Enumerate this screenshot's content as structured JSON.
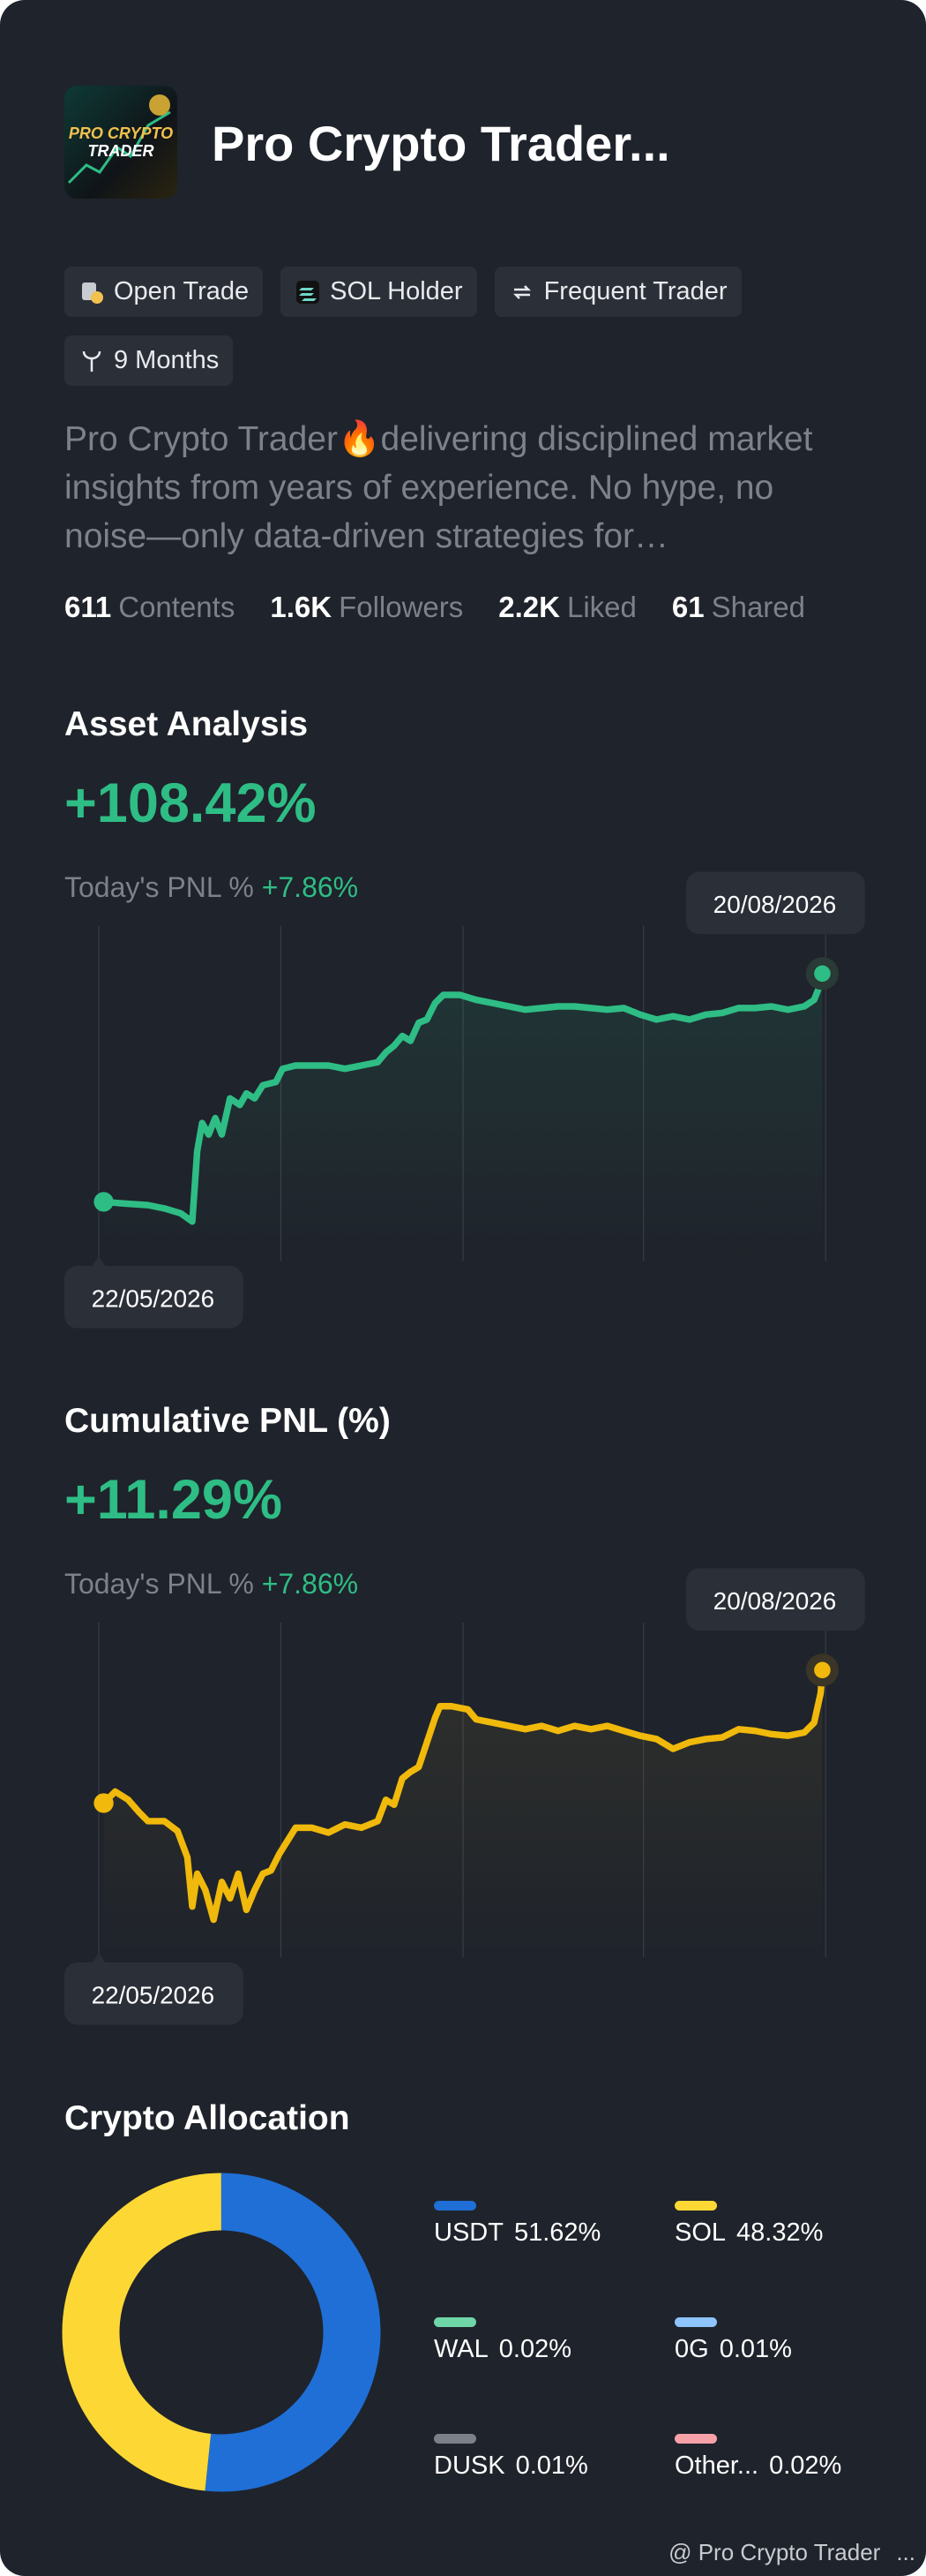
{
  "header": {
    "title": "Pro Crypto Trader...",
    "tags": [
      "Open Trade",
      "SOL Holder",
      "Frequent Trader",
      "9 Months"
    ],
    "description": "Pro Crypto Trader🔥delivering disciplined market insights from years of experience. No hype, no noise—only data-driven strategies for…",
    "stats": [
      {
        "value": "611",
        "label": "Contents"
      },
      {
        "value": "1.6K",
        "label": "Followers"
      },
      {
        "value": "2.2K",
        "label": "Liked"
      },
      {
        "value": "61",
        "label": "Shared"
      }
    ]
  },
  "asset_analysis": {
    "title": "Asset Analysis",
    "value": "+108.42%",
    "pnl_label": "Today's PNL %",
    "pnl_value": "+7.86%",
    "start_date": "22/05/2026",
    "end_date": "20/08/2026"
  },
  "cumulative_pnl": {
    "title": "Cumulative PNL (%)",
    "value": "+11.29%",
    "pnl_label": "Today's PNL %",
    "pnl_value": "+7.86%",
    "start_date": "22/05/2026",
    "end_date": "20/08/2026"
  },
  "allocation": {
    "title": "Crypto Allocation",
    "items": [
      {
        "name": "USDT",
        "value": 51.62,
        "label": "51.62%",
        "color": "#1f6fd6"
      },
      {
        "name": "SOL",
        "value": 48.32,
        "label": "48.32%",
        "color": "#fdd835"
      },
      {
        "name": "WAL",
        "value": 0.02,
        "label": "0.02%",
        "color": "#6fd6a8"
      },
      {
        "name": "0G",
        "value": 0.01,
        "label": "0.01%",
        "color": "#8ec5ff"
      },
      {
        "name": "DUSK",
        "value": 0.01,
        "label": "0.01%",
        "color": "#7b8089"
      },
      {
        "name": "Other...",
        "value": 0.02,
        "label": "0.02%",
        "color": "#f7a1a8"
      }
    ]
  },
  "footer": {
    "text": "@ Pro Crypto Trader",
    "more": "..."
  }
}
